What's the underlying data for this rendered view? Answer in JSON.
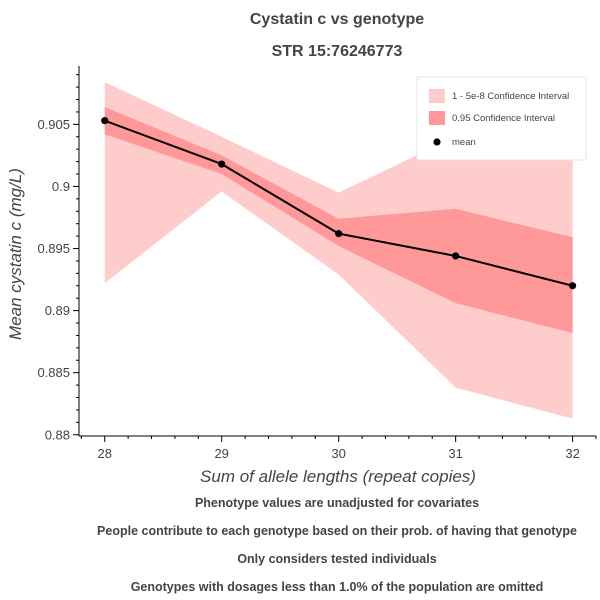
{
  "chart_data": {
    "type": "line",
    "title": "Cystatin c vs genotype",
    "subtitle": "STR 15:76246773",
    "xlabel": "Sum of allele lengths (repeat copies)",
    "ylabel": "Mean cystatin c (mg/L)",
    "x": [
      28,
      29,
      30,
      31,
      32
    ],
    "x_tick_labels": [
      "28",
      "29",
      "30",
      "31",
      "32"
    ],
    "xlim": [
      27.78,
      32.2
    ],
    "ylim": [
      0.8799,
      0.9097
    ],
    "y_ticks": [
      0.88,
      0.885,
      0.89,
      0.895,
      0.9,
      0.905
    ],
    "y_tick_labels": [
      "0.88",
      "0.885",
      "0.89",
      "0.895",
      "0.9",
      "0.905"
    ],
    "series": [
      {
        "name": "mean",
        "values": [
          0.9053,
          0.9018,
          0.8962,
          0.8944,
          0.892
        ]
      }
    ],
    "bands": [
      {
        "name": "1 - 5e-8 Confidence Interval",
        "color": "#ffcccc",
        "lower": [
          0.8922,
          0.8996,
          0.8929,
          0.8838,
          0.8813
        ],
        "upper": [
          0.9084,
          0.904,
          0.8995,
          0.904,
          0.903
        ]
      },
      {
        "name": "0.95 Confidence Interval",
        "color": "#ff9999",
        "lower": [
          0.9042,
          0.901,
          0.8952,
          0.8906,
          0.8882
        ],
        "upper": [
          0.9064,
          0.9025,
          0.8974,
          0.8982,
          0.8959
        ]
      }
    ],
    "legend_position": "top-right",
    "grid": false
  },
  "notes": [
    "Phenotype values are unadjusted for covariates",
    "People contribute to each genotype based on their prob. of having that genotype",
    "Only considers tested individuals",
    "Genotypes with dosages less than 1.0% of the population are omitted"
  ],
  "colors": {
    "outer_band": "#ffcccc",
    "inner_band": "#ff9999",
    "mean_line": "#000000",
    "text": "#444444"
  }
}
